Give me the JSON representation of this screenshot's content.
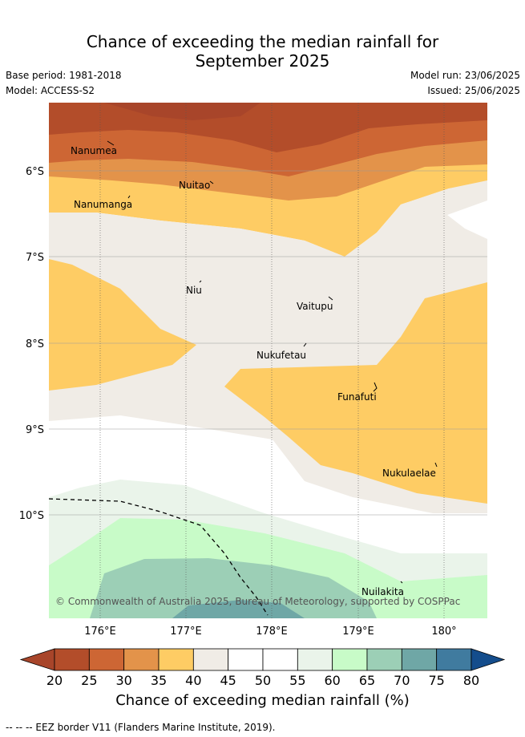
{
  "title_line1": "Chance of exceeding the median rainfall for",
  "title_line2": "September 2025",
  "base_period": "Base period: 1981-2018",
  "model": "Model: ACCESS-S2",
  "model_run": "Model run: 23/06/2025",
  "issued": "Issued: 25/06/2025",
  "lat_labels": [
    "6°S",
    "7°S",
    "8°S",
    "9°S",
    "10°S"
  ],
  "lon_labels": [
    "176°E",
    "177°E",
    "178°E",
    "179°E",
    "180°"
  ],
  "places": [
    "Nanumea",
    "Nuitao",
    "Nanumanga",
    "Niu",
    "Vaitupu",
    "Nukufetau",
    "Funafuti",
    "Nukulaelae",
    "Nuilakita"
  ],
  "copyright": "© Commonwealth of Australia 2025, Bureau of Meteorology, supported by COSPPac",
  "colorbar": {
    "ticks": [
      "20",
      "25",
      "30",
      "35",
      "40",
      "45",
      "50",
      "55",
      "60",
      "65",
      "70",
      "75",
      "80"
    ],
    "colors": [
      "#a8452a",
      "#b34d2a",
      "#cd6634",
      "#e3934a",
      "#fecc64",
      "#f0ece6",
      "#ffffff",
      "#ffffff",
      "#eaf4ea",
      "#c8fbc8",
      "#9ccfb6",
      "#6fa7a6",
      "#407b9f",
      "#144d8c"
    ],
    "label": "Chance of exceeding median rainfall (%)"
  },
  "eez_legend": "-- -- -- EEZ border V11 (Flanders Marine Institute, 2019)."
}
